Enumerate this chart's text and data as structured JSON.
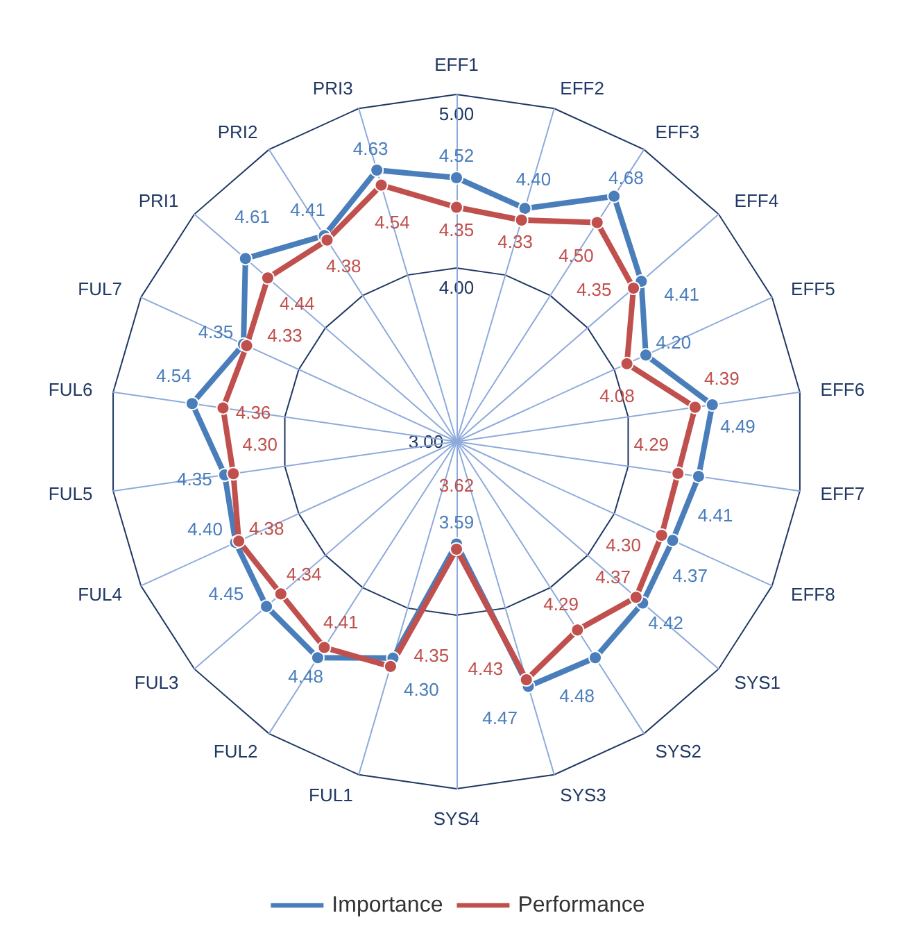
{
  "chart_data": {
    "type": "radar",
    "categories": [
      "EFF1",
      "EFF2",
      "EFF3",
      "EFF4",
      "EFF5",
      "EFF6",
      "EFF7",
      "EFF8",
      "SYS1",
      "SYS2",
      "SYS3",
      "SYS4",
      "FUL1",
      "FUL2",
      "FUL3",
      "FUL4",
      "FUL5",
      "FUL6",
      "FUL7",
      "PRI1",
      "PRI2",
      "PRI3"
    ],
    "series": [
      {
        "name": "Importance",
        "color": "#4a7ebb",
        "values": [
          4.52,
          4.4,
          4.68,
          4.41,
          4.2,
          4.49,
          4.41,
          4.37,
          4.42,
          4.48,
          4.47,
          3.59,
          4.3,
          4.48,
          4.45,
          4.4,
          4.35,
          4.54,
          4.35,
          4.61,
          4.41,
          4.63
        ],
        "value_labels": [
          "4.52",
          "4.40",
          "4.68",
          "4.41",
          "4.20",
          "4.49",
          "4.41",
          "4.37",
          "4.42",
          "4.48",
          "4.47",
          "3.59",
          "4.30",
          "4.48",
          "4.45",
          "4.40",
          "4.35",
          "4.54",
          "4.35",
          "4.61",
          "4.41",
          "4.63"
        ]
      },
      {
        "name": "Performance",
        "color": "#c0504d",
        "values": [
          4.35,
          4.33,
          4.5,
          4.35,
          4.08,
          4.39,
          4.29,
          4.3,
          4.37,
          4.29,
          4.43,
          3.62,
          4.35,
          4.41,
          4.34,
          4.38,
          4.3,
          4.36,
          4.33,
          4.44,
          4.38,
          4.54
        ],
        "value_labels": [
          "4.35",
          "4.33",
          "4.50",
          "4.35",
          "4.08",
          "4.39",
          "4.29",
          "4.30",
          "4.37",
          "4.29",
          "4.43",
          "3.62",
          "4.35",
          "4.41",
          "4.34",
          "4.38",
          "4.30",
          "4.36",
          "4.33",
          "4.44",
          "4.38",
          "4.54"
        ]
      }
    ],
    "ylim": [
      3,
      5
    ],
    "yticks": [
      {
        "value": 3,
        "label": "3.00"
      },
      {
        "value": 4,
        "label": "4.00"
      },
      {
        "value": 5,
        "label": "5.00"
      }
    ],
    "grid": true,
    "legend": "bottom",
    "marker": "circle",
    "line_style": "solid"
  }
}
